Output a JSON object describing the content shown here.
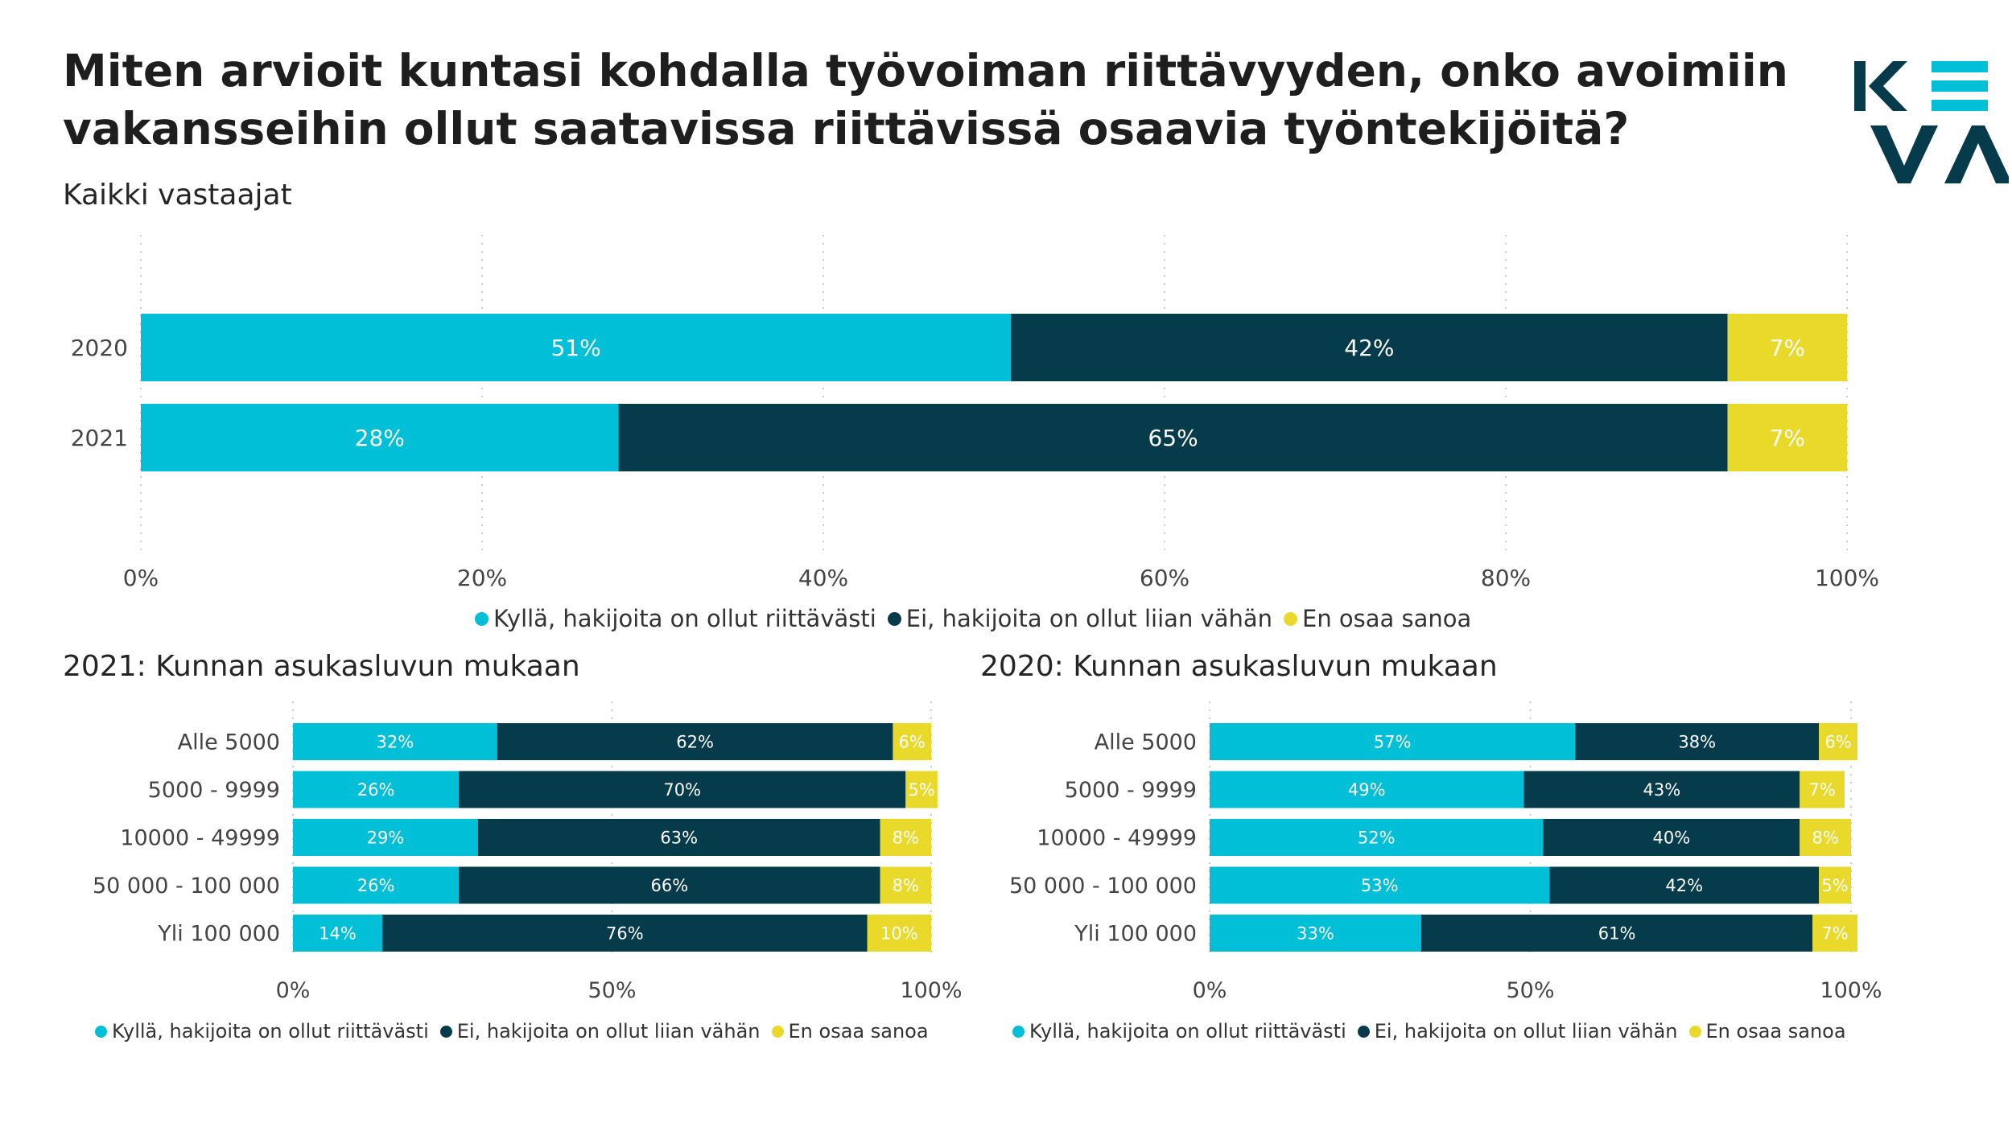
{
  "page": {
    "title_line1": "Miten arvioit kuntasi kohdalla työvoiman riittävyyden, onko avoimiin",
    "title_line2": "vakansseihin ollut saatavissa riittävissä osaavia työntekijöitä?",
    "brand_logo": "KEVA"
  },
  "colors": {
    "kylla": "#00bfd6",
    "ei": "#053b4a",
    "eos": "#e8d92b",
    "logo_cyan": "#00bfd6",
    "logo_dark": "#053b4a"
  },
  "chart_data": [
    {
      "type": "bar",
      "orientation": "horizontal-stacked-100",
      "title": "Kaikki vastaajat",
      "categories": [
        "2020",
        "2021"
      ],
      "series": [
        {
          "name": "Kyllä, hakijoita on ollut riittävästi",
          "values": [
            51,
            28
          ],
          "labels": [
            "51%",
            "28%"
          ]
        },
        {
          "name": "Ei, hakijoita on ollut liian vähän",
          "values": [
            42,
            65
          ],
          "labels": [
            "42%",
            "65%"
          ]
        },
        {
          "name": "En osaa sanoa",
          "values": [
            7,
            7
          ],
          "labels": [
            "7%",
            "7%"
          ]
        }
      ],
      "xlim": [
        0,
        100
      ],
      "x_ticks": [
        "0%",
        "20%",
        "40%",
        "60%",
        "80%",
        "100%"
      ],
      "grid": "vertical-dotted",
      "legend": "bottom"
    },
    {
      "type": "bar",
      "orientation": "horizontal-stacked-100",
      "title": "2021: Kunnan asukasluvun mukaan",
      "categories": [
        "Alle 5000",
        "5000 - 9999",
        "10000 - 49999",
        "50 000 - 100 000",
        "Yli 100 000"
      ],
      "series": [
        {
          "name": "Kyllä, hakijoita on ollut riittävästi",
          "values": [
            32,
            26,
            29,
            26,
            14
          ],
          "labels": [
            "32%",
            "26%",
            "29%",
            "26%",
            "14%"
          ]
        },
        {
          "name": "Ei, hakijoita on ollut liian vähän",
          "values": [
            62,
            70,
            63,
            66,
            76
          ],
          "labels": [
            "62%",
            "70%",
            "63%",
            "66%",
            "76%"
          ]
        },
        {
          "name": "En osaa sanoa",
          "values": [
            6,
            5,
            8,
            8,
            10
          ],
          "labels": [
            "6%",
            "5%",
            "8%",
            "8%",
            "10%"
          ]
        }
      ],
      "xlim": [
        0,
        100
      ],
      "x_ticks": [
        "0%",
        "50%",
        "100%"
      ],
      "grid": "vertical-dotted",
      "legend": "bottom"
    },
    {
      "type": "bar",
      "orientation": "horizontal-stacked-100",
      "title": "2020: Kunnan asukasluvun mukaan",
      "categories": [
        "Alle 5000",
        "5000 - 9999",
        "10000 - 49999",
        "50 000 - 100 000",
        "Yli 100 000"
      ],
      "series": [
        {
          "name": "Kyllä, hakijoita on ollut riittävästi",
          "values": [
            57,
            49,
            52,
            53,
            33
          ],
          "labels": [
            "57%",
            "49%",
            "52%",
            "53%",
            "33%"
          ]
        },
        {
          "name": "Ei, hakijoita on ollut liian vähän",
          "values": [
            38,
            43,
            40,
            42,
            61
          ],
          "labels": [
            "38%",
            "43%",
            "40%",
            "42%",
            "61%"
          ]
        },
        {
          "name": "En osaa sanoa",
          "values": [
            6,
            7,
            8,
            5,
            7
          ],
          "labels": [
            "6%",
            "7%",
            "8%",
            "5%",
            "7%"
          ]
        }
      ],
      "xlim": [
        0,
        100
      ],
      "x_ticks": [
        "0%",
        "50%",
        "100%"
      ],
      "grid": "vertical-dotted",
      "legend": "bottom"
    }
  ]
}
